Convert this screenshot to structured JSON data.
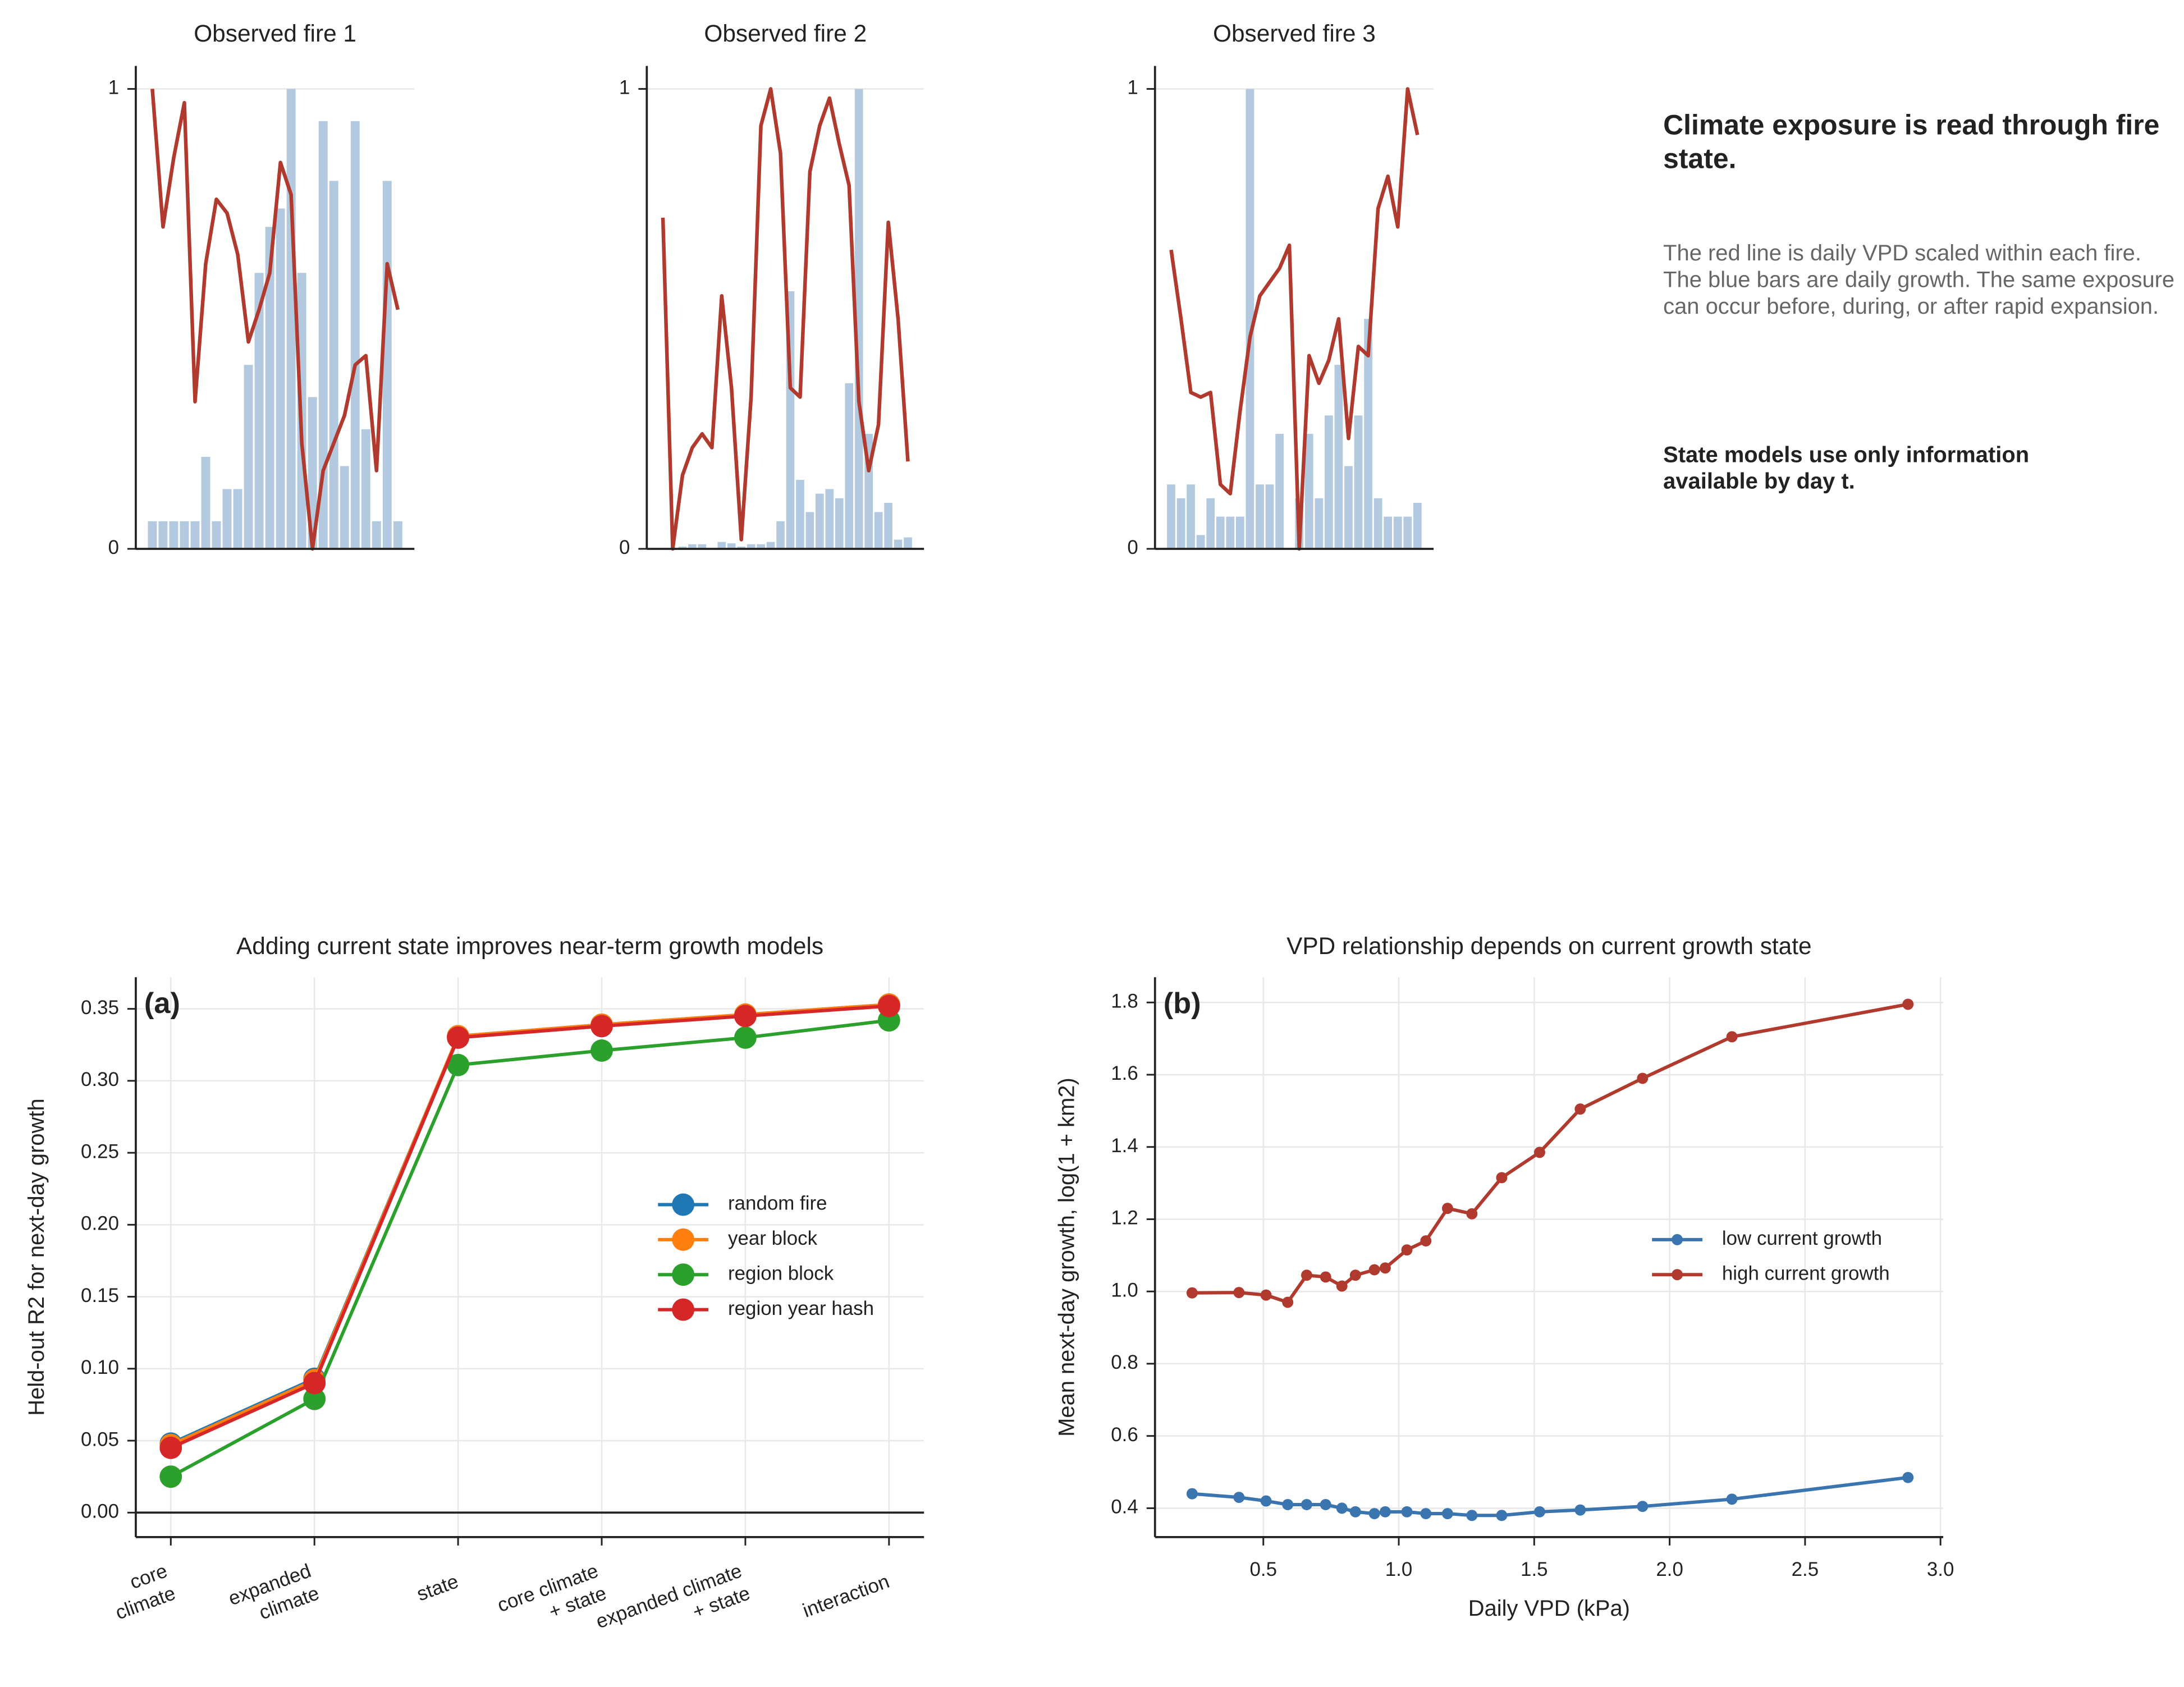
{
  "annotations": {
    "heading": "Climate exposure is read through fire state.",
    "body": "The red line is daily VPD scaled within each fire. The blue bars are daily growth. The same exposure can occur before, during, or after rapid expansion.",
    "note": "State models use only information available by day t."
  },
  "chart_data": [
    {
      "type": "bar-line",
      "title": "Observed fire 1",
      "ylim": [
        0,
        1.05
      ],
      "yticks": [
        0,
        1
      ],
      "grid": "y",
      "series": [
        {
          "kind": "bar",
          "color": "#b3c9e0",
          "values": [
            0.06,
            0.06,
            0.06,
            0.06,
            0.06,
            0.2,
            0.06,
            0.13,
            0.13,
            0.4,
            0.6,
            0.7,
            0.74,
            1.0,
            0.6,
            0.33,
            0.93,
            0.8,
            0.18,
            0.93,
            0.26,
            0.06,
            0.8,
            0.06
          ]
        },
        {
          "kind": "line",
          "color": "#b03a2e",
          "values": [
            1.0,
            0.7,
            0.85,
            0.97,
            0.32,
            0.62,
            0.76,
            0.73,
            0.64,
            0.45,
            0.52,
            0.6,
            0.84,
            0.77,
            0.23,
            0.0,
            0.17,
            0.23,
            0.29,
            0.4,
            0.42,
            0.17,
            0.62,
            0.52
          ]
        }
      ]
    },
    {
      "type": "bar-line",
      "title": "Observed fire 2",
      "ylim": [
        0,
        1.05
      ],
      "yticks": [
        0,
        1
      ],
      "grid": "y",
      "series": [
        {
          "kind": "bar",
          "color": "#b3c9e0",
          "values": [
            0,
            0,
            0.005,
            0.01,
            0.01,
            0,
            0.015,
            0.012,
            0.005,
            0.01,
            0.01,
            0.015,
            0.06,
            0.56,
            0.15,
            0.08,
            0.12,
            0.13,
            0.11,
            0.36,
            1.0,
            0.25,
            0.08,
            0.1,
            0.02,
            0.025
          ]
        },
        {
          "kind": "line",
          "color": "#b03a2e",
          "values": [
            0.72,
            0.0,
            0.16,
            0.22,
            0.25,
            0.22,
            0.55,
            0.35,
            0.02,
            0.33,
            0.92,
            1.0,
            0.86,
            0.35,
            0.33,
            0.82,
            0.92,
            0.98,
            0.88,
            0.79,
            0.32,
            0.17,
            0.27,
            0.71,
            0.5,
            0.19
          ]
        }
      ]
    },
    {
      "type": "bar-line",
      "title": "Observed fire 3",
      "ylim": [
        0,
        1.05
      ],
      "yticks": [
        0,
        1
      ],
      "grid": "y",
      "series": [
        {
          "kind": "bar",
          "color": "#b3c9e0",
          "values": [
            0.14,
            0.11,
            0.14,
            0.03,
            0.11,
            0.07,
            0.07,
            0.07,
            1.0,
            0.14,
            0.14,
            0.25,
            0.0,
            0.11,
            0.25,
            0.11,
            0.29,
            0.4,
            0.18,
            0.29,
            0.5,
            0.11,
            0.07,
            0.07,
            0.07,
            0.1
          ]
        },
        {
          "kind": "line",
          "color": "#b03a2e",
          "values": [
            0.65,
            0.5,
            0.34,
            0.33,
            0.34,
            0.14,
            0.12,
            0.3,
            0.46,
            0.55,
            0.58,
            0.61,
            0.66,
            0.0,
            0.42,
            0.36,
            0.41,
            0.5,
            0.24,
            0.44,
            0.42,
            0.74,
            0.81,
            0.7,
            1.0,
            0.9
          ]
        }
      ]
    },
    {
      "type": "line",
      "title": "Adding current state improves near-term growth models",
      "panel_label": "(a)",
      "ylabel": "Held-out R2 for next-day growth",
      "categories": [
        "core climate",
        "expanded climate",
        "state",
        "core climate + state",
        "expanded climate + state",
        "interaction"
      ],
      "ylim": [
        -0.017,
        0.372
      ],
      "yticks": [
        {
          "value": 0,
          "label": "0.00"
        },
        {
          "value": 0.05,
          "label": "0.05"
        },
        {
          "value": 0.1,
          "label": "0.10"
        },
        {
          "value": 0.15,
          "label": "0.15"
        },
        {
          "value": 0.2,
          "label": "0.20"
        },
        {
          "value": 0.25,
          "label": "0.25"
        },
        {
          "value": 0.3,
          "label": "0.30"
        },
        {
          "value": 0.35,
          "label": "0.35"
        }
      ],
      "hline": 0,
      "grid": "both",
      "legend": "center right",
      "series": [
        {
          "name": "random fire",
          "color": "#1f77b4",
          "values": [
            0.048,
            0.093,
            0.331,
            0.339,
            0.346,
            0.353
          ]
        },
        {
          "name": "year block",
          "color": "#ff7f0e",
          "values": [
            0.047,
            0.092,
            0.331,
            0.339,
            0.346,
            0.353
          ]
        },
        {
          "name": "region block",
          "color": "#2ca02c",
          "values": [
            0.025,
            0.079,
            0.311,
            0.321,
            0.33,
            0.342
          ]
        },
        {
          "name": "region year hash",
          "color": "#d62728",
          "values": [
            0.045,
            0.09,
            0.33,
            0.338,
            0.345,
            0.352
          ]
        }
      ]
    },
    {
      "type": "line",
      "title": "VPD relationship depends on current growth state",
      "panel_label": "(b)",
      "xlabel": "Daily VPD (kPa)",
      "ylabel": "Mean next-day growth, log(1 + km2)",
      "x": [
        0.237,
        0.41,
        0.51,
        0.59,
        0.66,
        0.73,
        0.79,
        0.84,
        0.91,
        0.95,
        1.03,
        1.1,
        1.18,
        1.27,
        1.38,
        1.52,
        1.67,
        1.9,
        2.23,
        2.88
      ],
      "xlim": [
        0.1,
        3.01
      ],
      "xticks": [
        0.5,
        {
          "value": 1,
          "label": "1.0"
        },
        1.5,
        {
          "value": 2,
          "label": "2.0"
        },
        2.5,
        {
          "value": 3,
          "label": "3.0"
        }
      ],
      "ylim": [
        0.32,
        1.87
      ],
      "yticks": [
        0.4,
        0.6,
        0.8,
        {
          "value": 1,
          "label": "1.0"
        },
        1.2,
        1.4,
        1.6,
        1.8
      ],
      "grid": "both",
      "legend": "center right",
      "series": [
        {
          "name": "low current growth",
          "color": "#3a75b0",
          "values": [
            0.44,
            0.43,
            0.42,
            0.41,
            0.41,
            0.41,
            0.4,
            0.39,
            0.385,
            0.39,
            0.39,
            0.385,
            0.385,
            0.38,
            0.38,
            0.39,
            0.395,
            0.405,
            0.425,
            0.485
          ]
        },
        {
          "name": "high current growth",
          "color": "#b03a2e",
          "values": [
            0.996,
            0.997,
            0.99,
            0.97,
            1.045,
            1.04,
            1.015,
            1.045,
            1.06,
            1.065,
            1.115,
            1.14,
            1.23,
            1.215,
            1.315,
            1.385,
            1.505,
            1.59,
            1.705,
            1.795
          ]
        }
      ]
    }
  ]
}
